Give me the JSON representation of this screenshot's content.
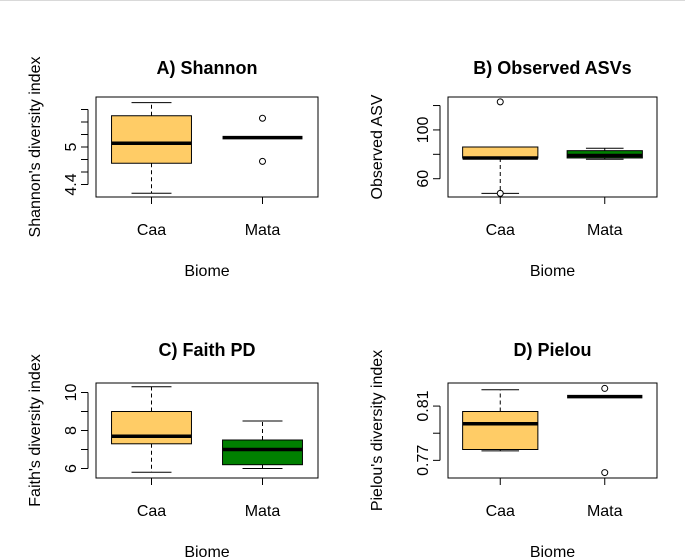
{
  "chart_data": [
    {
      "type": "boxplot",
      "panel": "A",
      "title": "A) Shannon",
      "xlabel": "Biome",
      "ylabel": "Shannon's diversity index",
      "ylim": [
        4.2,
        5.8
      ],
      "y_ticks": [
        4.4,
        5.0
      ],
      "minor_ticks": [
        4.4,
        4.6,
        4.8,
        5.0,
        5.2,
        5.4,
        5.6
      ],
      "categories": [
        "Caa",
        "Mata"
      ],
      "boxes": [
        {
          "name": "Caa",
          "color": "#FFCC66",
          "whisker_low": 4.26,
          "q1": 4.74,
          "median": 5.06,
          "q3": 5.5,
          "whisker_high": 5.71,
          "outliers": []
        },
        {
          "name": "Mata",
          "color": "#008000",
          "whisker_low": 5.15,
          "q1": 5.15,
          "median": 5.15,
          "q3": 5.15,
          "whisker_high": 5.15,
          "outliers": [
            5.46,
            4.77
          ]
        }
      ]
    },
    {
      "type": "boxplot",
      "panel": "B",
      "title": "B) Observed ASVs",
      "xlabel": "Biome",
      "ylabel": "Observed ASV",
      "ylim": [
        45,
        127
      ],
      "y_ticks": [
        60,
        100
      ],
      "minor_ticks": [
        60,
        80,
        100,
        120
      ],
      "categories": [
        "Caa",
        "Mata"
      ],
      "boxes": [
        {
          "name": "Caa",
          "color": "#FFCC66",
          "whisker_low": 48,
          "q1": 77,
          "median": 77,
          "q3": 86,
          "whisker_high": 86,
          "outliers": [
            123,
            48
          ]
        },
        {
          "name": "Mata",
          "color": "#008000",
          "whisker_low": 76,
          "q1": 77,
          "median": 79,
          "q3": 83,
          "whisker_high": 85,
          "outliers": []
        }
      ]
    },
    {
      "type": "boxplot",
      "panel": "C",
      "title": "C) Faith PD",
      "xlabel": "Biome",
      "ylabel": "Faith's diversity index",
      "ylim": [
        5.5,
        10.5
      ],
      "y_ticks": [
        6,
        8,
        10
      ],
      "minor_ticks": [
        6,
        7,
        8,
        9,
        10
      ],
      "categories": [
        "Caa",
        "Mata"
      ],
      "boxes": [
        {
          "name": "Caa",
          "color": "#FFCC66",
          "whisker_low": 5.8,
          "q1": 7.3,
          "median": 7.7,
          "q3": 9.0,
          "whisker_high": 10.3,
          "outliers": []
        },
        {
          "name": "Mata",
          "color": "#008000",
          "whisker_low": 6.0,
          "q1": 6.2,
          "median": 7.0,
          "q3": 7.5,
          "whisker_high": 8.5,
          "outliers": []
        }
      ]
    },
    {
      "type": "boxplot",
      "panel": "D",
      "title": "D) Pielou",
      "xlabel": "Biome",
      "ylabel": "Pielou's diversity index",
      "ylim": [
        0.757,
        0.827
      ],
      "y_ticks": [
        0.77,
        0.81
      ],
      "minor_ticks": [
        0.77,
        0.79,
        0.81
      ],
      "categories": [
        "Caa",
        "Mata"
      ],
      "boxes": [
        {
          "name": "Caa",
          "color": "#FFCC66",
          "whisker_low": 0.777,
          "q1": 0.778,
          "median": 0.797,
          "q3": 0.806,
          "whisker_high": 0.822,
          "outliers": []
        },
        {
          "name": "Mata",
          "color": "#008000",
          "whisker_low": 0.817,
          "q1": 0.817,
          "median": 0.817,
          "q3": 0.817,
          "whisker_high": 0.817,
          "outliers": [
            0.823,
            0.761
          ]
        }
      ]
    }
  ]
}
